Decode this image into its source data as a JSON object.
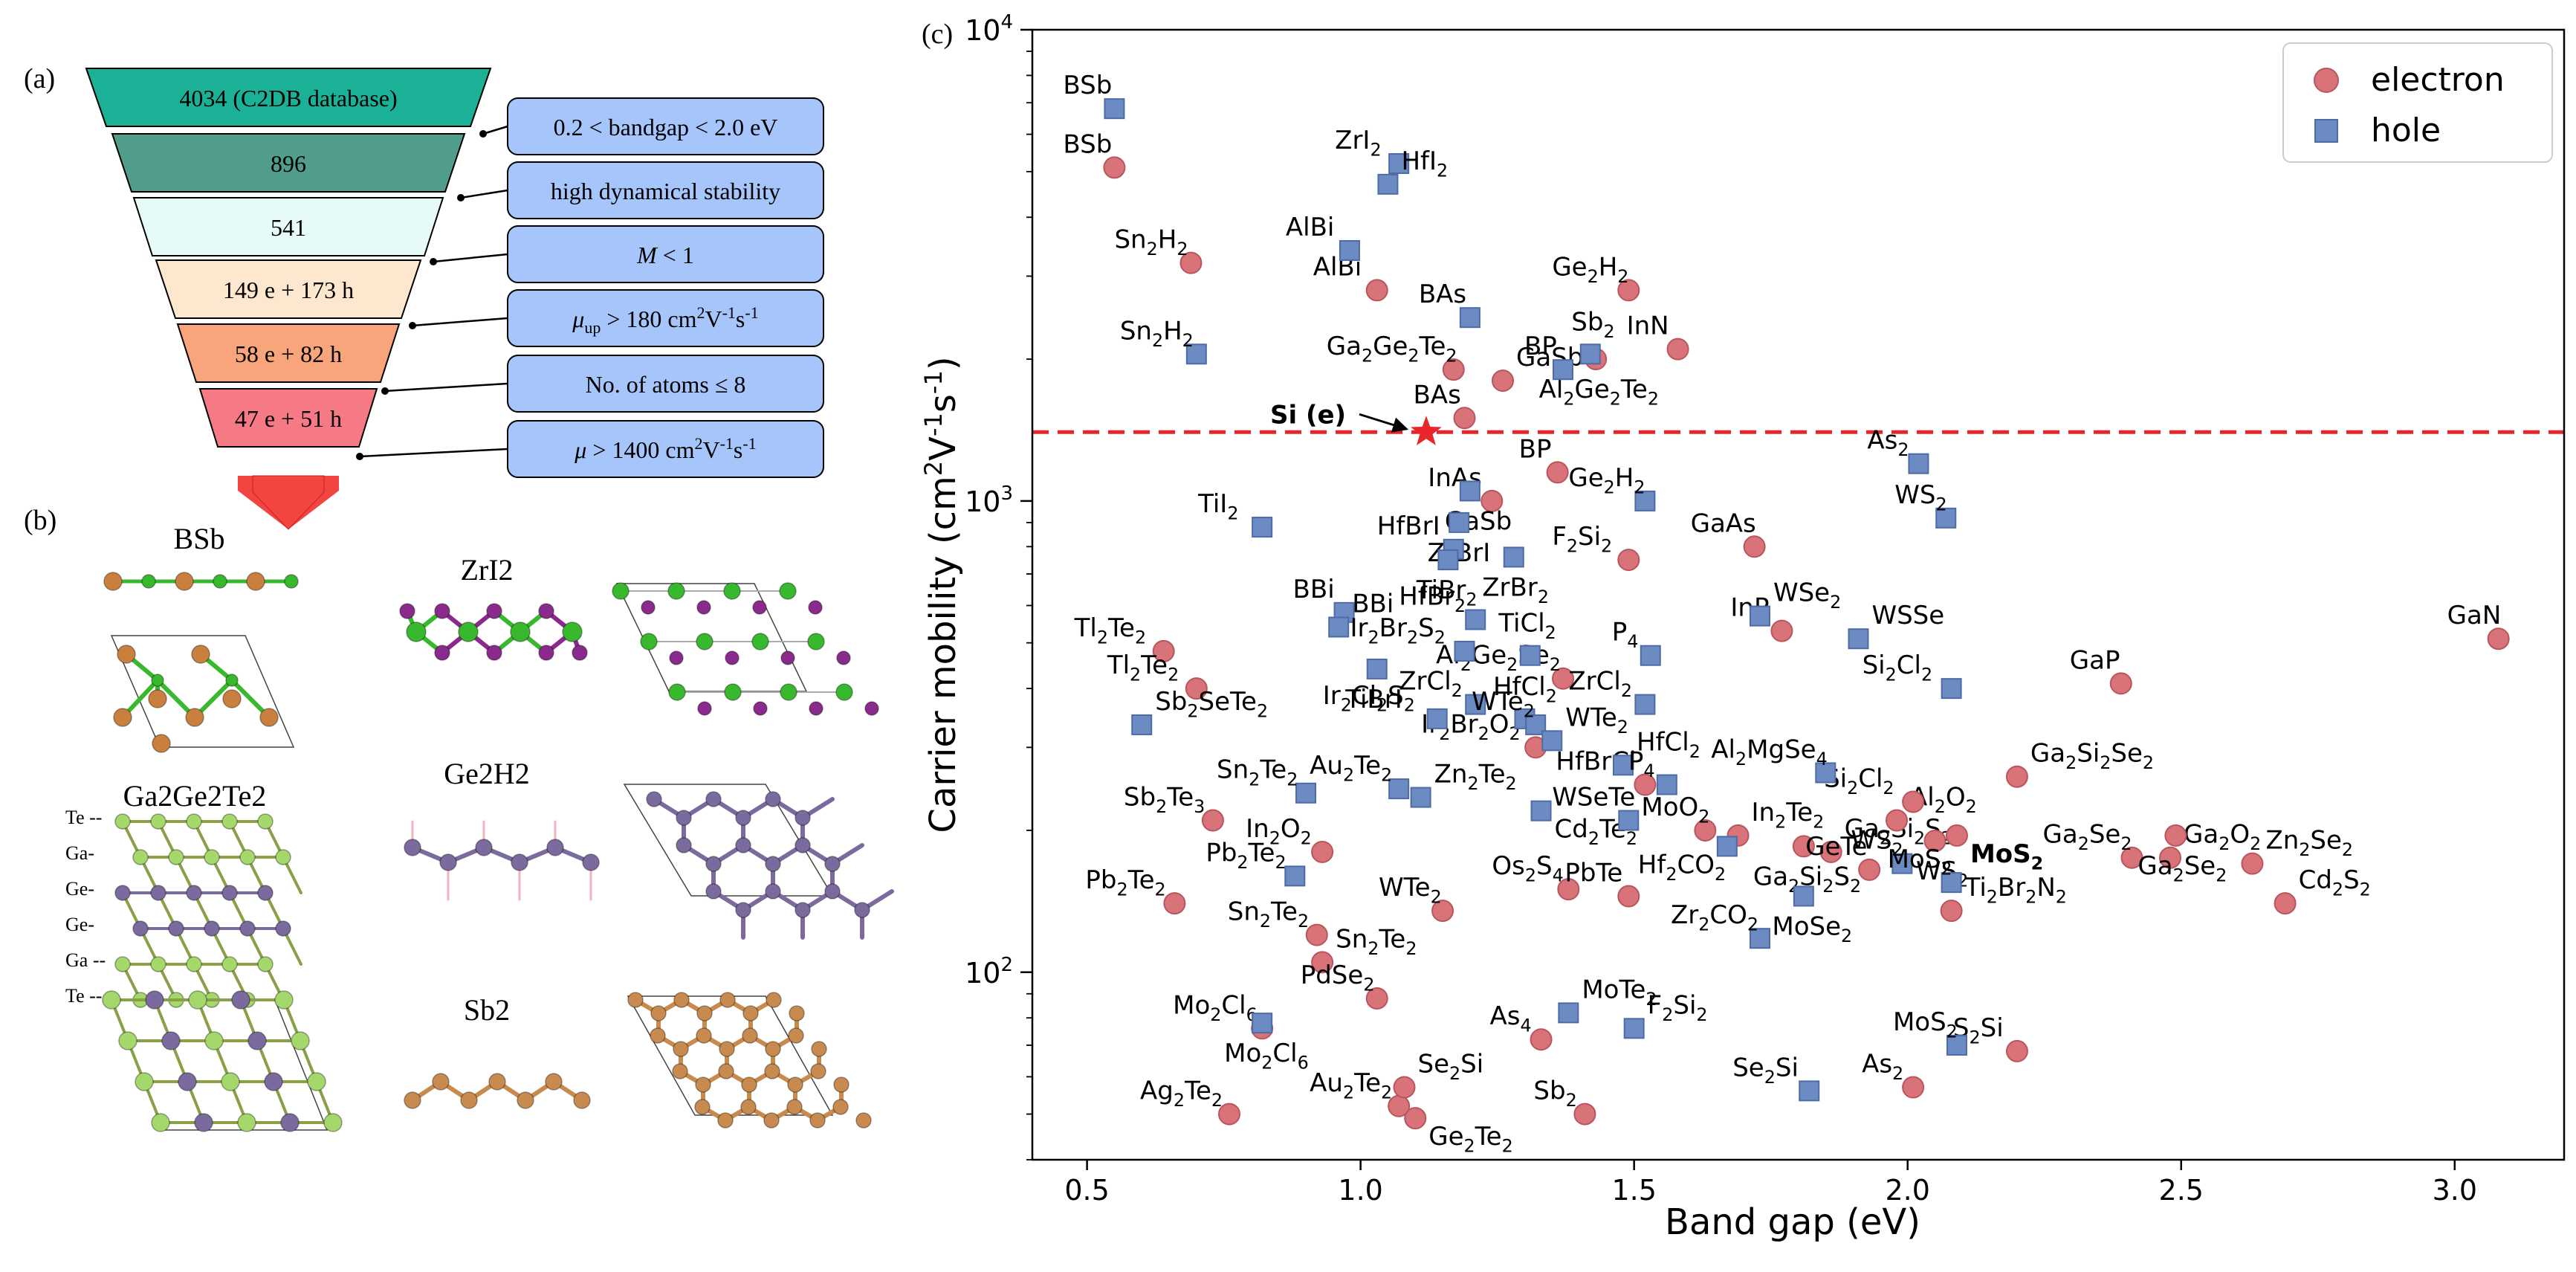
{
  "panel_labels": {
    "a": "(a)",
    "b": "(b)",
    "c": "(c)"
  },
  "funnel": {
    "counts": [
      "4034 (C2DB database)",
      "896",
      "541",
      "149 e + 173 h",
      "58 e + 82 h",
      "47 e + 51 h"
    ],
    "colors": [
      "#1bb197",
      "#519d8c",
      "#e6faf8",
      "#fde8cf",
      "#f9a57b",
      "#f67a86"
    ],
    "criteria": [
      "0.2 < bandgap < 2.0 eV",
      "high dynamical stability",
      "M < 1",
      "μup > 180 cm2V-1s-1",
      "No. of atoms ≤ 8",
      "μ > 1400 cm2V-1s-1"
    ],
    "criteria_color": "#a6c6fb",
    "arrow_color": "#f24440"
  },
  "structures": {
    "labels": [
      "BSb",
      "ZrI2",
      "Ga2Ge2Te2",
      "Ge2H2",
      "Sb2"
    ],
    "layer_labels": [
      "Te --",
      "Ga-",
      "Ge-",
      "Ge-",
      "Ga --",
      "Te --"
    ]
  },
  "chart_data": {
    "type": "scatter",
    "xlabel": "Band gap (eV)",
    "ylabel": "Carrier mobility (cm2V-1s-1)",
    "xlim": [
      0.4,
      3.2
    ],
    "ylim": [
      40,
      10000
    ],
    "yscale": "log",
    "xticks": [
      "0.5",
      "1.0",
      "1.5",
      "2.0",
      "2.5",
      "3.0"
    ],
    "yticks": [
      "10^2",
      "10^3",
      "10^4"
    ],
    "legend": {
      "position": "top-right",
      "entries": [
        "electron",
        "hole"
      ]
    },
    "reference": {
      "label": "Si (e)",
      "x": 1.12,
      "y": 1400,
      "line_y": 1400,
      "color": "#e8262a"
    },
    "series": [
      {
        "name": "electron",
        "color": "#d9737a",
        "marker": "circle",
        "points": [
          {
            "x": 0.55,
            "y": 5100,
            "label": "BSb"
          },
          {
            "x": 0.69,
            "y": 3200,
            "label": "Sn2H2"
          },
          {
            "x": 1.03,
            "y": 2800,
            "label": "AlBi"
          },
          {
            "x": 1.17,
            "y": 1900,
            "label": "Ga2Ge2Te2"
          },
          {
            "x": 1.26,
            "y": 1800,
            "label": "GaSb"
          },
          {
            "x": 1.19,
            "y": 1500,
            "label": "BAs"
          },
          {
            "x": 1.49,
            "y": 2800,
            "label": "Ge2H2"
          },
          {
            "x": 1.58,
            "y": 2100,
            "label": "InN"
          },
          {
            "x": 1.43,
            "y": 2000,
            "label": "Al2Ge2Te2"
          },
          {
            "x": 1.24,
            "y": 1000,
            "label": "InAs"
          },
          {
            "x": 1.36,
            "y": 1150,
            "label": "BP"
          },
          {
            "x": 1.49,
            "y": 750,
            "label": "F2Si2"
          },
          {
            "x": 1.72,
            "y": 800,
            "label": "GaAs"
          },
          {
            "x": 1.77,
            "y": 530,
            "label": "InP"
          },
          {
            "x": 0.64,
            "y": 480,
            "label": "Tl2Te2"
          },
          {
            "x": 0.7,
            "y": 400,
            "label": "Tl2Te2"
          },
          {
            "x": 1.37,
            "y": 420,
            "label": "Al2Ge2Se2"
          },
          {
            "x": 1.32,
            "y": 300,
            "label": "Ir2Br2O2"
          },
          {
            "x": 0.73,
            "y": 210,
            "label": "Sb2Te3"
          },
          {
            "x": 0.93,
            "y": 180,
            "label": "In2O2"
          },
          {
            "x": 0.92,
            "y": 120,
            "label": "Sn2Te2"
          },
          {
            "x": 0.93,
            "y": 105,
            "label": "Sn2Te2"
          },
          {
            "x": 0.66,
            "y": 140,
            "label": "Pb2Te2"
          },
          {
            "x": 1.15,
            "y": 135,
            "label": "WTe2"
          },
          {
            "x": 1.38,
            "y": 150,
            "label": "Os2S4"
          },
          {
            "x": 1.49,
            "y": 145,
            "label": "PbTe"
          },
          {
            "x": 1.52,
            "y": 250,
            "label": "HfBrCl"
          },
          {
            "x": 1.63,
            "y": 200,
            "label": "MoO2"
          },
          {
            "x": 1.69,
            "y": 195,
            "label": "In2Te2"
          },
          {
            "x": 1.81,
            "y": 185,
            "label": "Ga2Si2S2"
          },
          {
            "x": 1.86,
            "y": 180,
            "label": "Ga2Si2S2"
          },
          {
            "x": 1.98,
            "y": 210,
            "label": "Al2O2"
          },
          {
            "x": 2.01,
            "y": 230,
            "label": "Si2Cl2"
          },
          {
            "x": 2.05,
            "y": 190,
            "label": "WS2"
          },
          {
            "x": 2.09,
            "y": 195,
            "label": "MoS2"
          },
          {
            "x": 1.93,
            "y": 165,
            "label": "GeTe"
          },
          {
            "x": 2.08,
            "y": 135,
            "label": "Ti2Br2N2"
          },
          {
            "x": 2.2,
            "y": 260,
            "label": "Ga2Si2Se2"
          },
          {
            "x": 2.39,
            "y": 410,
            "label": "GaP"
          },
          {
            "x": 2.41,
            "y": 175,
            "label": "Ga2Se2"
          },
          {
            "x": 2.48,
            "y": 175,
            "label": "Ga2O2"
          },
          {
            "x": 2.49,
            "y": 195,
            "label": "Ga2Se2"
          },
          {
            "x": 2.63,
            "y": 170,
            "label": "Zn2Se2"
          },
          {
            "x": 2.69,
            "y": 140,
            "label": "Cd2S2"
          },
          {
            "x": 3.08,
            "y": 510,
            "label": "GaN"
          },
          {
            "x": 0.76,
            "y": 50,
            "label": "Ag2Te2"
          },
          {
            "x": 1.07,
            "y": 52,
            "label": "Au2Te2"
          },
          {
            "x": 1.08,
            "y": 57,
            "label": "Se2Si"
          },
          {
            "x": 1.1,
            "y": 49,
            "label": "Ge2Te2"
          },
          {
            "x": 1.03,
            "y": 88,
            "label": "PdSe2"
          },
          {
            "x": 0.82,
            "y": 76,
            "label": "Mo2Cl6"
          },
          {
            "x": 1.33,
            "y": 72,
            "label": "As4"
          },
          {
            "x": 1.41,
            "y": 50,
            "label": "Sb2"
          },
          {
            "x": 2.01,
            "y": 57,
            "label": "As2"
          },
          {
            "x": 2.2,
            "y": 68,
            "label": "S2Si"
          }
        ]
      },
      {
        "name": "hole",
        "color": "#6d8bc3",
        "marker": "square",
        "points": [
          {
            "x": 0.55,
            "y": 6800,
            "label": "BSb"
          },
          {
            "x": 1.07,
            "y": 5200,
            "label": "ZrI2"
          },
          {
            "x": 1.05,
            "y": 4700,
            "label": "HfI2"
          },
          {
            "x": 0.98,
            "y": 3400,
            "label": "AlBi"
          },
          {
            "x": 0.7,
            "y": 2050,
            "label": "Sn2H2"
          },
          {
            "x": 1.2,
            "y": 2450,
            "label": "BAs"
          },
          {
            "x": 1.42,
            "y": 2050,
            "label": "Sb2"
          },
          {
            "x": 1.37,
            "y": 1900,
            "label": "BP"
          },
          {
            "x": 1.2,
            "y": 1050,
            "label": "GaSb"
          },
          {
            "x": 1.52,
            "y": 1000,
            "label": "Ge2H2"
          },
          {
            "x": 2.02,
            "y": 1200,
            "label": "As2"
          },
          {
            "x": 2.07,
            "y": 920,
            "label": "WS2"
          },
          {
            "x": 0.82,
            "y": 880,
            "label": "TiI2"
          },
          {
            "x": 1.18,
            "y": 900,
            "label": "ZrBrI"
          },
          {
            "x": 1.17,
            "y": 790,
            "label": "HfBrI"
          },
          {
            "x": 1.16,
            "y": 750,
            "label": "TiBr2"
          },
          {
            "x": 1.28,
            "y": 760,
            "label": "ZrBr2"
          },
          {
            "x": 0.97,
            "y": 580,
            "label": "BBi"
          },
          {
            "x": 0.96,
            "y": 540,
            "label": "BBi"
          },
          {
            "x": 1.21,
            "y": 560,
            "label": "HfBr2"
          },
          {
            "x": 1.19,
            "y": 480,
            "label": "Ir2Br2S2"
          },
          {
            "x": 1.31,
            "y": 470,
            "label": "TiCl2"
          },
          {
            "x": 1.03,
            "y": 440,
            "label": "TiBrI"
          },
          {
            "x": 1.53,
            "y": 470,
            "label": "P4"
          },
          {
            "x": 1.73,
            "y": 570,
            "label": "WSe2"
          },
          {
            "x": 1.91,
            "y": 510,
            "label": "WSSe"
          },
          {
            "x": 2.08,
            "y": 400,
            "label": "Si2Cl2"
          },
          {
            "x": 1.52,
            "y": 370,
            "label": "ZrCl2"
          },
          {
            "x": 1.21,
            "y": 370,
            "label": "ZrCl2"
          },
          {
            "x": 1.14,
            "y": 345,
            "label": "Ir2Cl2S2"
          },
          {
            "x": 1.3,
            "y": 345,
            "label": "HfCl2"
          },
          {
            "x": 1.32,
            "y": 335,
            "label": "WTe2"
          },
          {
            "x": 1.35,
            "y": 310,
            "label": "WTe2"
          },
          {
            "x": 0.6,
            "y": 335,
            "label": "Sb2SeTe2"
          },
          {
            "x": 1.48,
            "y": 275,
            "label": "HfCl2"
          },
          {
            "x": 1.56,
            "y": 250,
            "label": "P4"
          },
          {
            "x": 1.85,
            "y": 265,
            "label": "Al2MgSe4"
          },
          {
            "x": 0.9,
            "y": 240,
            "label": "Sn2Te2"
          },
          {
            "x": 1.07,
            "y": 245,
            "label": "Au2Te2"
          },
          {
            "x": 1.11,
            "y": 235,
            "label": "Zn2Te2"
          },
          {
            "x": 1.33,
            "y": 220,
            "label": "Cd2Te2"
          },
          {
            "x": 1.49,
            "y": 210,
            "label": "WSeTe"
          },
          {
            "x": 1.67,
            "y": 185,
            "label": "Hf2CO2"
          },
          {
            "x": 1.99,
            "y": 170,
            "label": "WS2"
          },
          {
            "x": 2.08,
            "y": 155,
            "label": "MoS2"
          },
          {
            "x": 0.88,
            "y": 160,
            "label": "Pb2Te2"
          },
          {
            "x": 1.81,
            "y": 145,
            "label": "MoSe2"
          },
          {
            "x": 1.73,
            "y": 118,
            "label": "Zr2CO2"
          },
          {
            "x": 0.82,
            "y": 78,
            "label": "Mo2Cl6"
          },
          {
            "x": 1.38,
            "y": 82,
            "label": "MoTe2"
          },
          {
            "x": 1.5,
            "y": 76,
            "label": "F2Si2"
          },
          {
            "x": 2.09,
            "y": 70,
            "label": "MoS2"
          },
          {
            "x": 1.82,
            "y": 56,
            "label": "Se2Si"
          }
        ]
      }
    ]
  }
}
